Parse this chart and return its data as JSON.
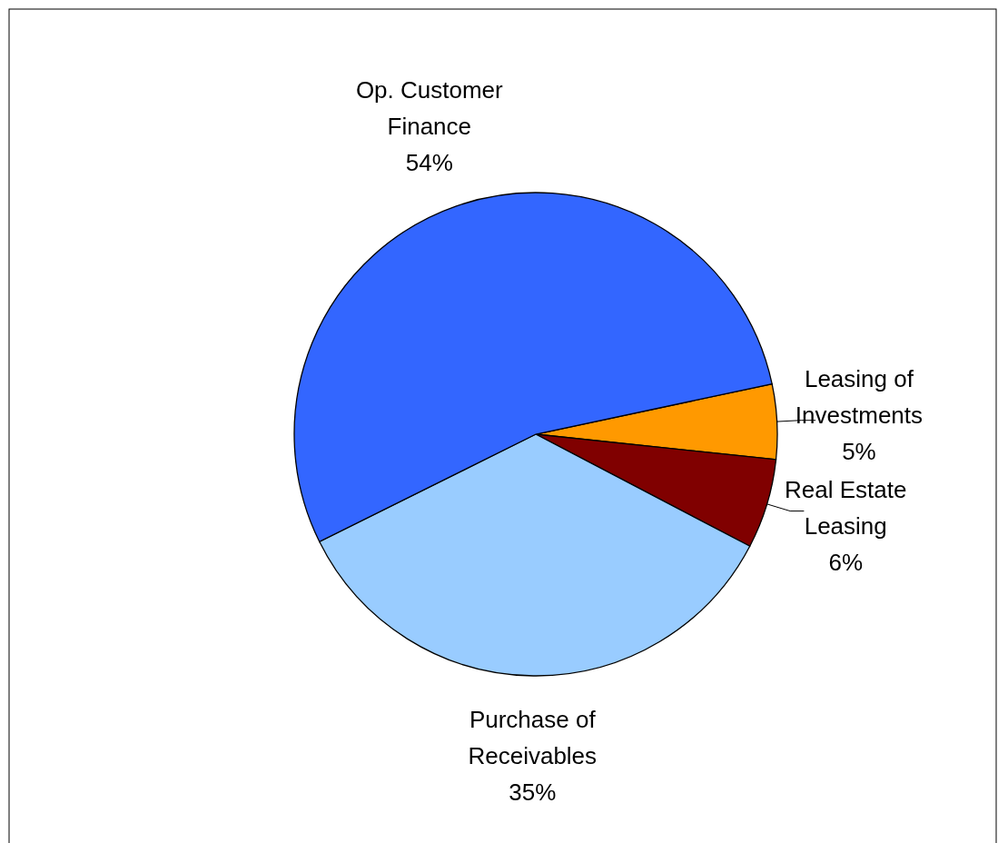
{
  "chart_data": {
    "type": "pie",
    "categories": [
      "Leasing of Investments",
      "Real Estate Leasing",
      "Purchase of Receivables",
      "Op. Customer Finance"
    ],
    "values": [
      5,
      6,
      35,
      54
    ],
    "colors": [
      "#ff9900",
      "#800000",
      "#99ccff",
      "#3366ff"
    ],
    "value_labels": [
      "5%",
      "6%",
      "35%",
      "54%"
    ]
  }
}
